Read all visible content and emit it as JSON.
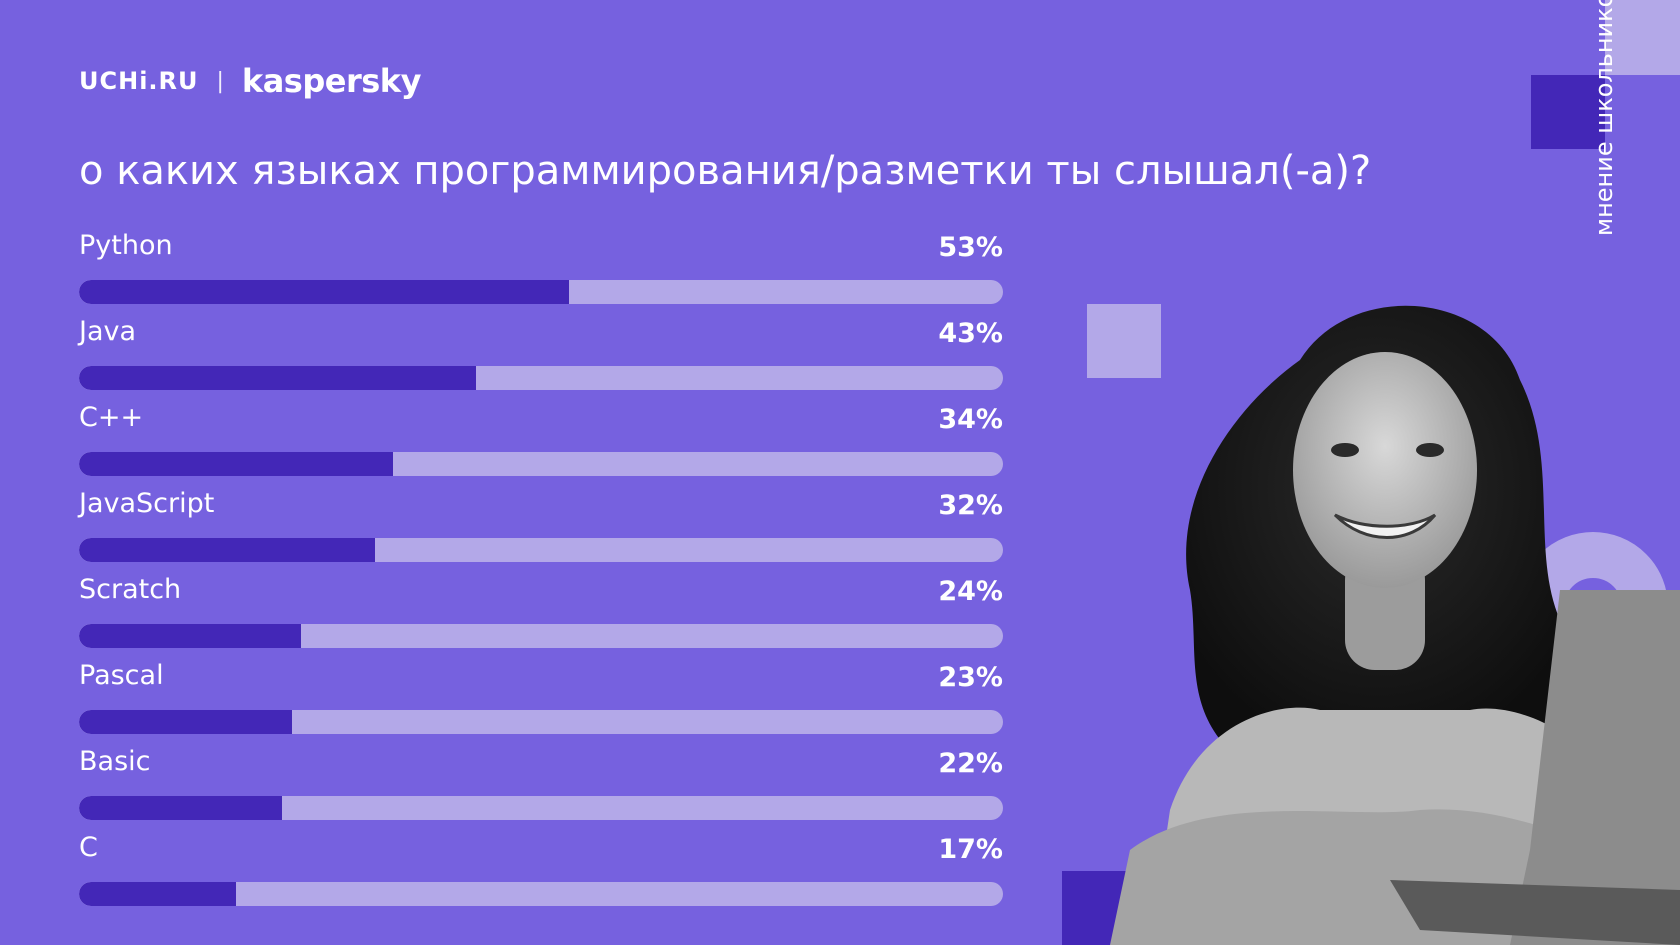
{
  "header": {
    "brand_left": "UCHi.RU",
    "separator": "|",
    "brand_right": "kaspersky"
  },
  "title": "о каких языках программирования/разметки ты слышал(-а)?",
  "side_label": "мнение школьников",
  "colors": {
    "background": "#7661df",
    "bar_fill": "#4327b7",
    "bar_track": "#b3a8e8",
    "accent_light": "#b3a8e8"
  },
  "chart_data": {
    "type": "bar",
    "orientation": "horizontal",
    "categories": [
      "Python",
      "Java",
      "C++",
      "JavaScript",
      "Scratch",
      "Pascal",
      "Basic",
      "C"
    ],
    "values": [
      53,
      43,
      34,
      32,
      24,
      23,
      22,
      17
    ],
    "value_labels": [
      "53%",
      "43%",
      "34%",
      "32%",
      "24%",
      "23%",
      "22%",
      "17%"
    ],
    "xlim": [
      0,
      100
    ],
    "unit": "%",
    "grid": false
  }
}
